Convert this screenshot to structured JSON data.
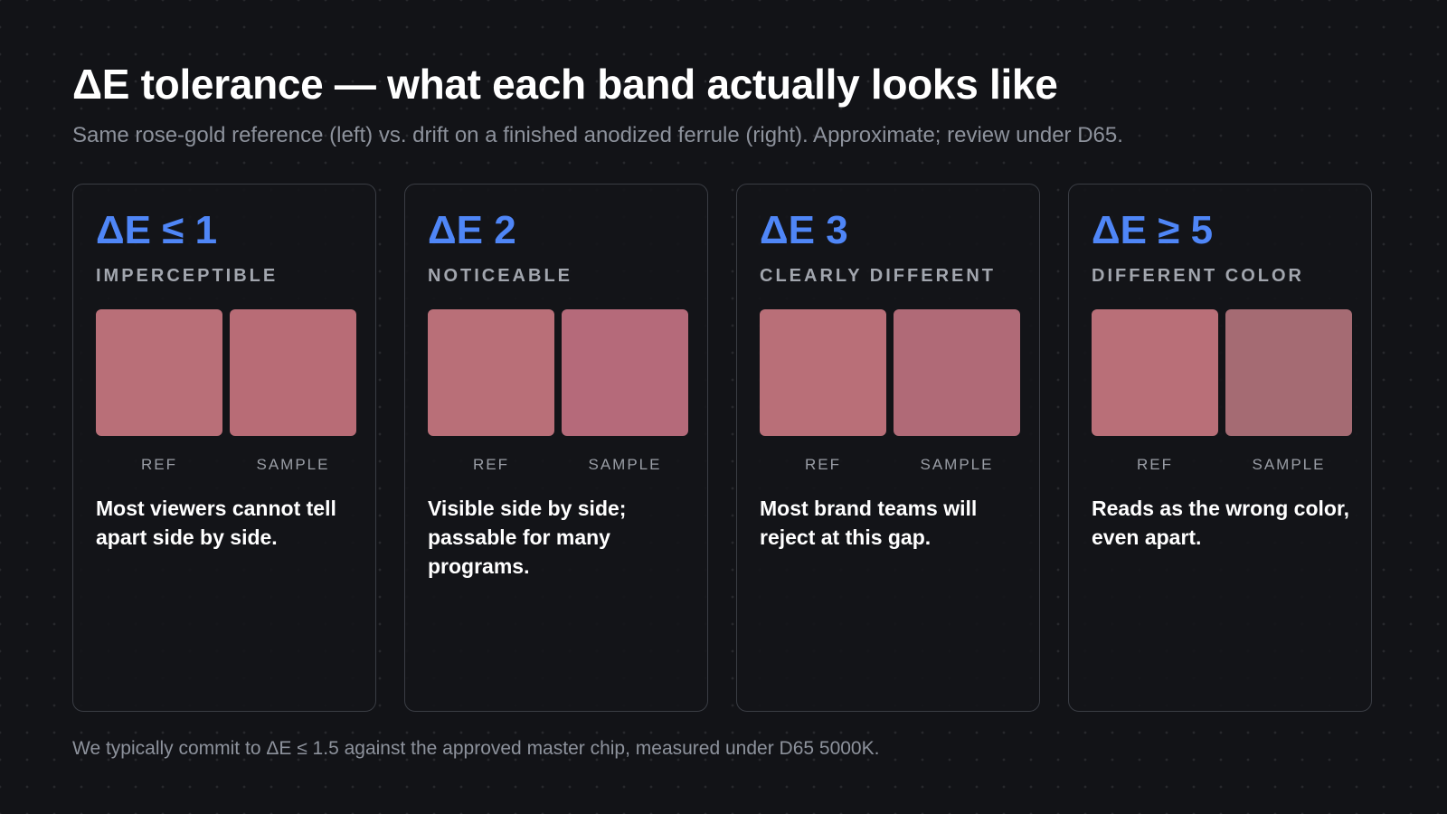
{
  "header": {
    "title": "ΔE tolerance — what each band actually looks like",
    "subtitle": "Same rose-gold reference (left) vs. drift on a finished anodized ferrule (right). Approximate; review under D65."
  },
  "colors": {
    "background": "#121317",
    "accent": "#4f86f7",
    "reference_swatch": "#b96f78"
  },
  "bands": [
    {
      "title": "ΔE ≤ 1",
      "label": "IMPERCEPTIBLE",
      "ref_caption": "REF",
      "sample_caption": "SAMPLE",
      "ref_color": "#b96f78",
      "sample_color": "#b86c76",
      "description": "Most viewers cannot tell apart side by side."
    },
    {
      "title": "ΔE 2",
      "label": "NOTICEABLE",
      "ref_caption": "REF",
      "sample_caption": "SAMPLE",
      "ref_color": "#b96f78",
      "sample_color": "#b56a7a",
      "description": "Visible side by side; passable for many programs."
    },
    {
      "title": "ΔE 3",
      "label": "CLEARLY DIFFERENT",
      "ref_caption": "REF",
      "sample_caption": "SAMPLE",
      "ref_color": "#b96f78",
      "sample_color": "#b06a77",
      "description": "Most brand teams will reject at this gap."
    },
    {
      "title": "ΔE ≥ 5",
      "label": "DIFFERENT COLOR",
      "ref_caption": "REF",
      "sample_caption": "SAMPLE",
      "ref_color": "#b96f78",
      "sample_color": "#a56b73",
      "description": "Reads as the wrong color, even apart."
    }
  ],
  "footer": {
    "note": "We typically commit to ΔE ≤ 1.5 against the approved master chip, measured under D65 5000K."
  }
}
